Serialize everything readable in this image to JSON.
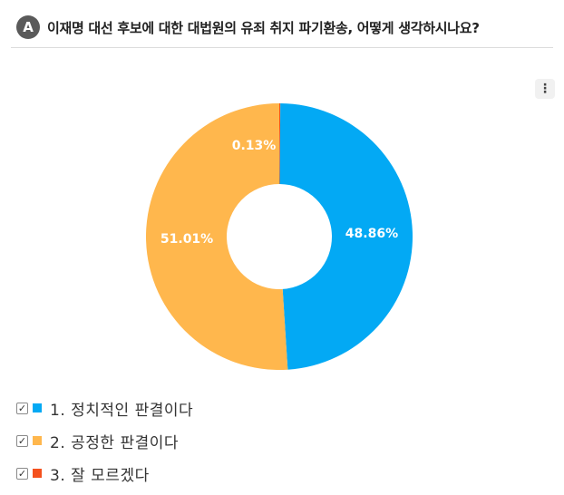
{
  "header": {
    "badge": "A",
    "title": "이재명 대선 후보에 대한 대법원의 유죄 취지 파기환송, 어떻게 생각하시나요?"
  },
  "menu": {
    "icon": "more-vertical-icon",
    "glyph": "⋮"
  },
  "chart_data": {
    "type": "pie",
    "donut": true,
    "categories": [
      "1. 정치적인 판결이다",
      "2. 공정한 판결이다",
      "3. 잘 모르겠다"
    ],
    "values": [
      48.86,
      51.01,
      0.13
    ],
    "labels": [
      "48.86%",
      "51.01%",
      "0.13%"
    ],
    "colors": [
      "#03a9f4",
      "#ffb74d",
      "#f4511e"
    ],
    "legend_position": "bottom-left"
  },
  "legend": {
    "check_glyph": "✓",
    "items": [
      {
        "label": "1. 정치적인 판결이다",
        "color": "#03a9f4"
      },
      {
        "label": "2. 공정한 판결이다",
        "color": "#ffb74d"
      },
      {
        "label": "3. 잘 모르겠다",
        "color": "#f4511e"
      }
    ]
  }
}
